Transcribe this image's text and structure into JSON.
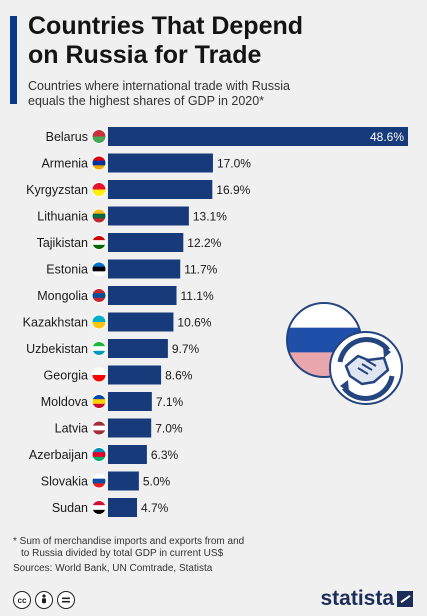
{
  "header": {
    "title_line1": "Countries That Depend",
    "title_line2": "on Russia for Trade",
    "subtitle_line1": "Countries where international trade with Russia",
    "subtitle_line2": "equals the highest shares of GDP in 2020*"
  },
  "footer": {
    "footnote_line1": "* Sum of merchandise imports and exports from and",
    "footnote_line2": "to Russia divided by total GDP in current US$",
    "sources": "Sources: World Bank, UN Comtrade, Statista",
    "brand": "statista",
    "cc_icons": [
      "cc-icon",
      "attribution-icon",
      "no-derivatives-icon"
    ]
  },
  "colors": {
    "bar": "#173a7a",
    "accent": "#0c3a8a",
    "russia_white": "#ffffff",
    "russia_blue": "#1f4fa8",
    "russia_red": "#e9a6ad",
    "illustration_outline": "#24457f"
  },
  "chart_data": {
    "type": "bar",
    "orientation": "horizontal",
    "categories": [
      "Belarus",
      "Armenia",
      "Kyrgyzstan",
      "Lithuania",
      "Tajikistan",
      "Estonia",
      "Mongolia",
      "Kazakhstan",
      "Uzbekistan",
      "Georgia",
      "Moldova",
      "Latvia",
      "Azerbaijan",
      "Slovakia",
      "Sudan"
    ],
    "values": [
      48.6,
      17.0,
      16.9,
      13.1,
      12.2,
      11.7,
      11.1,
      10.6,
      9.7,
      8.6,
      7.1,
      7.0,
      6.3,
      5.0,
      4.7
    ],
    "value_labels": [
      "48.6%",
      "17.0%",
      "16.9%",
      "13.1%",
      "12.2%",
      "11.7%",
      "11.1%",
      "10.6%",
      "9.7%",
      "8.6%",
      "7.1%",
      "7.0%",
      "6.3%",
      "5.0%",
      "4.7%"
    ],
    "unit": "%",
    "xlim": [
      0,
      48.6
    ],
    "grid": false,
    "legend": "none"
  }
}
